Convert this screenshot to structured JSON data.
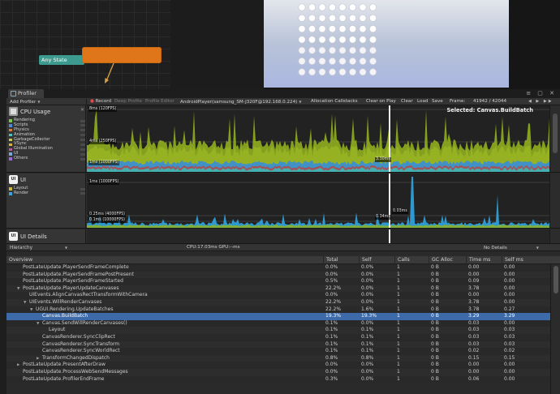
{
  "animator": {
    "any_state_label": "Any State"
  },
  "profiler": {
    "tab_title": "Profiler",
    "window_buttons": "≡ ▢ ✕",
    "toolbar": {
      "add_profiler": "Add Profiler",
      "record": "Record",
      "deep_profile": "Deep Profile",
      "profile_editor": "Profile Editor",
      "target_player": "AndroidPlayer(samsung_SM-J320F@192.168.0.224)",
      "allocation_callstacks": "Allocation Callstacks",
      "clear_on_play": "Clear on Play",
      "clear": "Clear",
      "load": "Load",
      "save": "Save",
      "frame_label": "Frame:",
      "frame_value": "41942 / 42044",
      "record_color": "#e14b4b"
    },
    "selected_label": "Selected: Canvas.BuildBatch",
    "cpu_module": {
      "title": "CPU Usage",
      "legend": [
        {
          "label": "Rendering",
          "color": "#7ec84b"
        },
        {
          "label": "Scripts",
          "color": "#4d8ad9"
        },
        {
          "label": "Physics",
          "color": "#d97f32"
        },
        {
          "label": "Animation",
          "color": "#4bc1c1"
        },
        {
          "label": "GarbageCollector",
          "color": "#c9c94b"
        },
        {
          "label": "VSync",
          "color": "#d9b43a"
        },
        {
          "label": "Global Illumination",
          "color": "#b85a9c"
        },
        {
          "label": "UI",
          "color": "#7ba9d9"
        },
        {
          "label": "Others",
          "color": "#9c6ad9"
        }
      ],
      "grid_labels": [
        "8ms (120FPS)",
        "4ms (250FPS)",
        "1ms (1000FPS)"
      ],
      "cursor_tag": "3.30ms"
    },
    "ui_module": {
      "title": "UI",
      "legend": [
        {
          "label": "Layout",
          "color": "#c9b93a"
        },
        {
          "label": "Render",
          "color": "#3aa3d9"
        }
      ],
      "grid_labels": [
        "1ms (1000FPS)",
        "0.25ms (4000FPS)",
        "0.1ms (10000FPS)"
      ],
      "cursor_tags": [
        "0.03ms",
        "0.34ms"
      ]
    },
    "ui_details_module": {
      "title": "UI Details"
    },
    "hierarchy_bar": {
      "mode": "Hierarchy",
      "cpu_gpu": "CPU:17.03ms   GPU:--ms",
      "details": "No Details"
    },
    "columns": [
      "Overview",
      "Total",
      "Self",
      "Calls",
      "GC Alloc",
      "Time ms",
      "Self ms"
    ],
    "rows": [
      {
        "name": "PostLateUpdate.PlayerSendFrameComplete",
        "indent": 1,
        "arrow": "",
        "total": "0.0%",
        "self": "0.0%",
        "calls": "1",
        "gc": "0 B",
        "time": "0.00",
        "selfms": "0.00"
      },
      {
        "name": "PostLateUpdate.PlayerSendFramePostPresent",
        "indent": 1,
        "arrow": "",
        "total": "0.0%",
        "self": "0.0%",
        "calls": "1",
        "gc": "0 B",
        "time": "0.00",
        "selfms": "0.00"
      },
      {
        "name": "PostLateUpdate.PlayerSendFrameStarted",
        "indent": 1,
        "arrow": "",
        "total": "0.5%",
        "self": "0.0%",
        "calls": "1",
        "gc": "0 B",
        "time": "0.09",
        "selfms": "0.00"
      },
      {
        "name": "PostLateUpdate.PlayerUpdateCanvases",
        "indent": 1,
        "arrow": "▼",
        "total": "22.2%",
        "self": "0.0%",
        "calls": "1",
        "gc": "0 B",
        "time": "3.78",
        "selfms": "0.00"
      },
      {
        "name": "UIEvents.AlignCanvasRectTransformWithCamera",
        "indent": 2,
        "arrow": "",
        "total": "0.0%",
        "self": "0.0%",
        "calls": "1",
        "gc": "0 B",
        "time": "0.00",
        "selfms": "0.00"
      },
      {
        "name": "UIEvents.WillRenderCanvases",
        "indent": 2,
        "arrow": "▼",
        "total": "22.2%",
        "self": "0.0%",
        "calls": "1",
        "gc": "0 B",
        "time": "3.78",
        "selfms": "0.00"
      },
      {
        "name": "UGUI.Rendering.UpdateBatches",
        "indent": 3,
        "arrow": "▼",
        "total": "22.2%",
        "self": "1.6%",
        "calls": "1",
        "gc": "0 B",
        "time": "3.78",
        "selfms": "0.27"
      },
      {
        "name": "Canvas.BuildBatch",
        "indent": 4,
        "arrow": "",
        "total": "19.3%",
        "self": "19.3%",
        "calls": "1",
        "gc": "0 B",
        "time": "3.29",
        "selfms": "3.29",
        "selected": true
      },
      {
        "name": "Canvas.SendWillRenderCanvases()",
        "indent": 4,
        "arrow": "▼",
        "total": "0.1%",
        "self": "0.0%",
        "calls": "1",
        "gc": "0 B",
        "time": "0.03",
        "selfms": "0.00"
      },
      {
        "name": "Layout",
        "indent": 5,
        "arrow": "",
        "total": "0.1%",
        "self": "0.1%",
        "calls": "1",
        "gc": "0 B",
        "time": "0.03",
        "selfms": "0.03"
      },
      {
        "name": "CanvasRenderer.SyncClipRect",
        "indent": 4,
        "arrow": "",
        "total": "0.1%",
        "self": "0.1%",
        "calls": "1",
        "gc": "0 B",
        "time": "0.03",
        "selfms": "0.03"
      },
      {
        "name": "CanvasRenderer.SyncTransform",
        "indent": 4,
        "arrow": "",
        "total": "0.1%",
        "self": "0.1%",
        "calls": "1",
        "gc": "0 B",
        "time": "0.03",
        "selfms": "0.03"
      },
      {
        "name": "CanvasRenderer.SyncWorldRect",
        "indent": 4,
        "arrow": "",
        "total": "0.1%",
        "self": "0.1%",
        "calls": "1",
        "gc": "0 B",
        "time": "0.02",
        "selfms": "0.02"
      },
      {
        "name": "TransformChangedDispatch",
        "indent": 4,
        "arrow": "▶",
        "total": "0.8%",
        "self": "0.8%",
        "calls": "1",
        "gc": "0 B",
        "time": "0.15",
        "selfms": "0.15"
      },
      {
        "name": "PostLateUpdate.PresentAfterDraw",
        "indent": 1,
        "arrow": "▶",
        "total": "0.0%",
        "self": "0.0%",
        "calls": "1",
        "gc": "0 B",
        "time": "0.00",
        "selfms": "0.00"
      },
      {
        "name": "PostLateUpdate.ProcessWebSendMessages",
        "indent": 1,
        "arrow": "",
        "total": "0.0%",
        "self": "0.0%",
        "calls": "1",
        "gc": "0 B",
        "time": "0.00",
        "selfms": "0.00"
      },
      {
        "name": "PostLateUpdate.ProfilerEndFrame",
        "indent": 1,
        "arrow": "",
        "total": "0.3%",
        "self": "0.0%",
        "calls": "1",
        "gc": "0 B",
        "time": "0.06",
        "selfms": "0.00"
      }
    ]
  }
}
